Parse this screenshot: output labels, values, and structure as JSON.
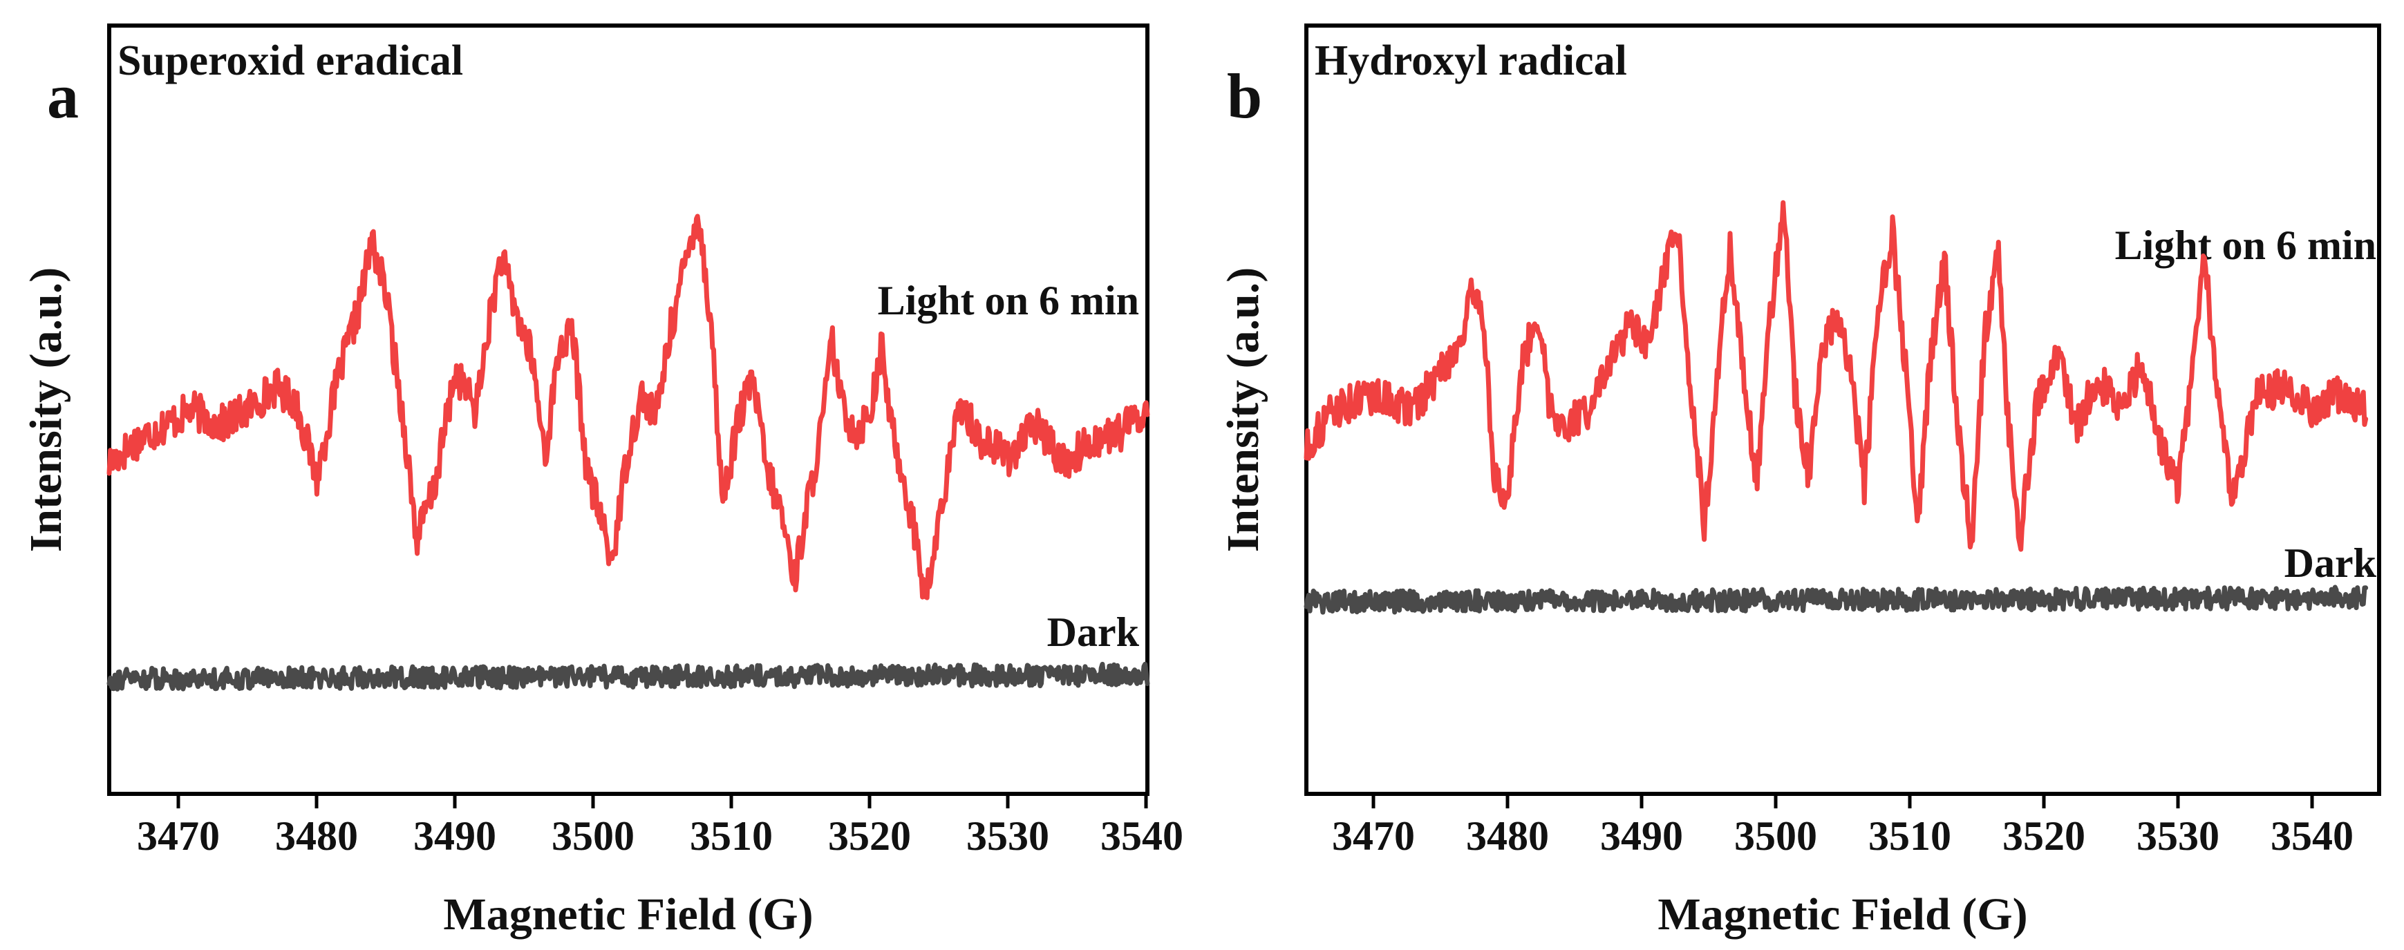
{
  "figure": {
    "panels": [
      {
        "letter": "a",
        "title": "Superoxid eradical",
        "xlabel": "Magnetic Field (G)",
        "ylabel": "Intensity (a.u.)",
        "x_tick_labels": [
          "3470",
          "3480",
          "3490",
          "3500",
          "3510",
          "3520",
          "3530",
          "3540"
        ],
        "light_label": "Light on 6 min",
        "dark_label": "Dark"
      },
      {
        "letter": "b",
        "title": "Hydroxyl radical",
        "xlabel": "Magnetic Field (G)",
        "ylabel": "Intensity (a.u.)",
        "x_tick_labels": [
          "3470",
          "3480",
          "3490",
          "3500",
          "3510",
          "3520",
          "3530",
          "3540"
        ],
        "light_label": "Light on 6 min",
        "dark_label": "Dark"
      }
    ]
  },
  "chart_data": [
    {
      "type": "line",
      "panel": "a",
      "title": "Superoxid eradical",
      "xlabel": "Magnetic Field (G)",
      "ylabel": "Intensity (a.u.)",
      "xlim": [
        3465,
        3540
      ],
      "ylim": [
        0,
        1
      ],
      "xticks": [
        3470,
        3480,
        3490,
        3500,
        3510,
        3520,
        3530,
        3540
      ],
      "grid": false,
      "series": [
        {
          "name": "Light on 6 min",
          "color": "#f04141",
          "x": [
            3465,
            3467,
            3469,
            3471,
            3473,
            3475,
            3477,
            3478.5,
            3480,
            3481.5,
            3483,
            3484,
            3485,
            3486.5,
            3487.2,
            3488.5,
            3490,
            3491.5,
            3492.5,
            3493.3,
            3494.5,
            3495.5,
            3496.5,
            3497.5,
            3498.5,
            3499.5,
            3500.5,
            3501.3,
            3502.5,
            3503.5,
            3504.5,
            3505.5,
            3506.5,
            3507.5,
            3508.5,
            3509.3,
            3510.5,
            3511.5,
            3512.5,
            3513.5,
            3514.5,
            3515.5,
            3516.5,
            3517.2,
            3518,
            3519,
            3520,
            3520.8,
            3521.5,
            3522.5,
            3523.3,
            3524,
            3525,
            3526.5,
            3528,
            3530,
            3532,
            3534,
            3536,
            3538,
            3540
          ],
          "y": [
            0.43,
            0.46,
            0.48,
            0.5,
            0.48,
            0.5,
            0.53,
            0.51,
            0.41,
            0.54,
            0.63,
            0.72,
            0.65,
            0.45,
            0.33,
            0.4,
            0.55,
            0.5,
            0.62,
            0.7,
            0.62,
            0.57,
            0.44,
            0.58,
            0.6,
            0.42,
            0.36,
            0.3,
            0.45,
            0.52,
            0.49,
            0.6,
            0.68,
            0.76,
            0.61,
            0.38,
            0.49,
            0.54,
            0.42,
            0.37,
            0.28,
            0.38,
            0.48,
            0.59,
            0.5,
            0.47,
            0.5,
            0.58,
            0.48,
            0.4,
            0.33,
            0.25,
            0.36,
            0.51,
            0.46,
            0.44,
            0.48,
            0.43,
            0.46,
            0.47,
            0.5
          ]
        },
        {
          "name": "Dark",
          "color": "#4a4a4a",
          "x": [
            3465,
            3540
          ],
          "y": [
            0.15,
            0.155
          ]
        }
      ]
    },
    {
      "type": "line",
      "panel": "b",
      "title": "Hydroxyl radical",
      "xlabel": "Magnetic Field (G)",
      "ylabel": "Intensity (a.u.)",
      "xlim": [
        3465,
        3545
      ],
      "ylim": [
        0,
        1
      ],
      "xticks": [
        3470,
        3480,
        3490,
        3500,
        3510,
        3520,
        3530,
        3540
      ],
      "grid": false,
      "series": [
        {
          "name": "Light on 6 min",
          "color": "#f04141",
          "x": [
            3465,
            3467,
            3470,
            3473,
            3475,
            3476.5,
            3477.5,
            3478.2,
            3479,
            3479.8,
            3481,
            3482.2,
            3483.2,
            3484.5,
            3486,
            3487.5,
            3489,
            3490.5,
            3491.5,
            3492.7,
            3493.7,
            3494.7,
            3495.6,
            3496.6,
            3497.6,
            3498.6,
            3499.6,
            3500.6,
            3501.4,
            3502.5,
            3503.5,
            3504.6,
            3505.6,
            3506.6,
            3507.7,
            3508.7,
            3509.7,
            3510.6,
            3511.6,
            3512.6,
            3513.6,
            3514.6,
            3515.6,
            3516.6,
            3517.3,
            3518.2,
            3519.5,
            3521,
            3522.5,
            3524,
            3526,
            3527.3,
            3528.5,
            3530,
            3531,
            3532,
            3532.8,
            3534,
            3536,
            3538,
            3540,
            3542,
            3544
          ],
          "y": [
            0.45,
            0.5,
            0.52,
            0.5,
            0.55,
            0.59,
            0.66,
            0.62,
            0.42,
            0.36,
            0.55,
            0.63,
            0.5,
            0.48,
            0.5,
            0.55,
            0.61,
            0.58,
            0.66,
            0.74,
            0.52,
            0.35,
            0.54,
            0.71,
            0.55,
            0.4,
            0.62,
            0.77,
            0.53,
            0.41,
            0.58,
            0.63,
            0.55,
            0.4,
            0.63,
            0.73,
            0.55,
            0.35,
            0.58,
            0.69,
            0.48,
            0.32,
            0.6,
            0.71,
            0.49,
            0.33,
            0.51,
            0.57,
            0.48,
            0.54,
            0.5,
            0.57,
            0.46,
            0.4,
            0.53,
            0.7,
            0.54,
            0.38,
            0.52,
            0.53,
            0.5,
            0.52,
            0.5
          ]
        },
        {
          "name": "Dark",
          "color": "#4a4a4a",
          "x": [
            3465,
            3544
          ],
          "y": [
            0.25,
            0.255
          ]
        }
      ]
    }
  ]
}
